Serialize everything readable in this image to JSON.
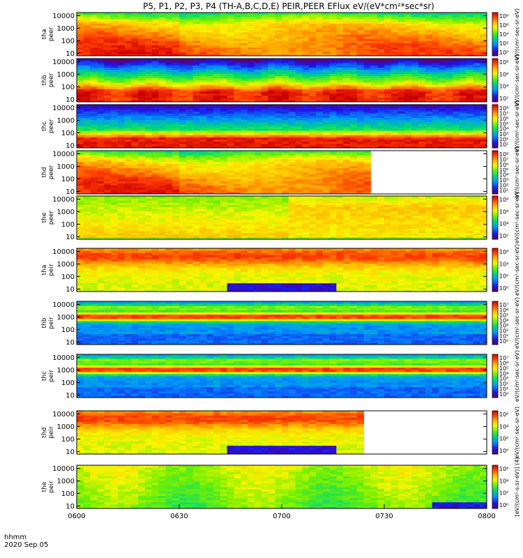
{
  "title": "P5, P1, P2, P3, P4 (TH-A,B,C,D,E) PEIR,PEER EFlux eV/(eV*cm²*sec*sr)",
  "footer": {
    "time_label": "hhmm",
    "date_label": "2020 Sep 05"
  },
  "chart_data": {
    "type": "heatmap",
    "x_ticks": [
      "0600",
      "0630",
      "0700",
      "0730",
      "0800"
    ],
    "x_range": [
      "06:00",
      "08:00"
    ],
    "y_ticks": [
      "10",
      "100",
      "1000",
      "10000"
    ],
    "y_scale": "log",
    "panels": [
      {
        "probe": "tha",
        "species": "peer",
        "label": "tha\npeer",
        "cbar_ticks": [
          "10⁸",
          "10⁶",
          "10⁴",
          "10²",
          "10⁰"
        ],
        "profile": "hot-electron"
      },
      {
        "probe": "thb",
        "species": "peer",
        "label": "thb\npeer",
        "cbar_ticks": [
          "10⁸",
          "10⁶",
          "10⁴",
          "10²"
        ],
        "profile": "cold-electron"
      },
      {
        "probe": "thc",
        "species": "peer",
        "label": "thc\npeer",
        "cbar_ticks": [
          "10⁸",
          "10⁷",
          "10⁶",
          "10⁵",
          "10⁴",
          "10³",
          "10²",
          "10¹"
        ],
        "profile": "cold-electron-noisy"
      },
      {
        "probe": "thd",
        "species": "peer",
        "label": "thd\npeer",
        "cbar_ticks": [
          "10⁸",
          "10⁷",
          "10⁶",
          "10⁵",
          "10⁴",
          "10³",
          "10²",
          "10¹"
        ],
        "profile": "hot-electron",
        "data_end": "07:25"
      },
      {
        "probe": "the",
        "species": "peer",
        "label": "the\npeer",
        "cbar_ticks": [
          "10⁸",
          "10⁶",
          "10⁴",
          "10²"
        ],
        "profile": "boundary-electron"
      },
      {
        "probe": "tha",
        "species": "peir",
        "label": "tha\npeir",
        "cbar_ticks": [
          "10⁶",
          "10⁴",
          "10²",
          "10⁰"
        ],
        "profile": "ion-dropout"
      },
      {
        "probe": "thb",
        "species": "peir",
        "label": "thb\npeir",
        "cbar_ticks": [
          "10⁷",
          "10⁶",
          "10⁵",
          "10⁴",
          "10³",
          "10²",
          "10¹",
          "10⁰"
        ],
        "profile": "solar-wind-ion"
      },
      {
        "probe": "thc",
        "species": "peir",
        "label": "thc\npeir",
        "cbar_ticks": [
          "10⁷",
          "10⁶",
          "10⁵",
          "10⁴",
          "10³",
          "10²",
          "10¹",
          "10⁰"
        ],
        "profile": "solar-wind-ion"
      },
      {
        "probe": "thd",
        "species": "peir",
        "label": "thd\npeir",
        "cbar_ticks": [
          "10⁶",
          "10⁴",
          "10²",
          "10⁰"
        ],
        "profile": "ion-dropout",
        "data_end": "07:23"
      },
      {
        "probe": "the",
        "species": "peir",
        "label": "the\npeir",
        "cbar_ticks": [
          "10⁶",
          "10⁴",
          "10²",
          "10⁰"
        ],
        "profile": "hot-ion"
      }
    ],
    "colorbar_labels": [
      "eV/(cm²-sec-sr-eV)",
      "eV/(cm²-sec-sr-eV)",
      "eV/(cm²-sec-sr-eV)",
      "eV/(cm²-sec-sr-eV)",
      "eV/(cm²-sec-sr-eV)",
      "eV/(cm²-sec-sr-eV)",
      "eV/(cm²-sec-sr-eV)",
      "eV/(cm²-sec-sr-eV)",
      "eV/(cm²-sec-sr-eV)",
      "[eV/(cm²-s-sr-eV)] (4)"
    ]
  }
}
